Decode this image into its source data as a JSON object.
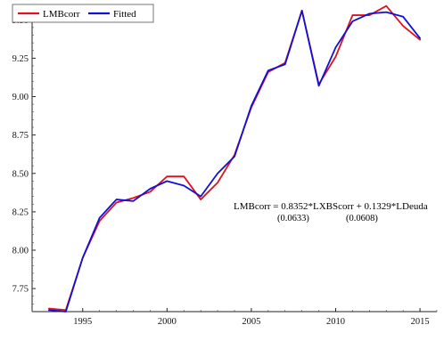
{
  "chart_data": {
    "type": "line",
    "title": "",
    "xlabel": "",
    "ylabel": "",
    "xlim": [
      1992,
      2016
    ],
    "ylim": [
      7.6,
      9.6
    ],
    "x_ticks": [
      1995,
      2000,
      2005,
      2010,
      2015
    ],
    "y_ticks": [
      7.75,
      8.0,
      8.25,
      8.5,
      8.75,
      9.0,
      9.25,
      9.5
    ],
    "x_tick_labels": [
      "1995",
      "2000",
      "2005",
      "2010",
      "2015"
    ],
    "y_tick_labels": [
      "7.75",
      "8.00",
      "8.25",
      "8.50",
      "8.75",
      "9.00",
      "9.25",
      "9.50"
    ],
    "grid": false,
    "legend_position": "top-left",
    "x": [
      1993,
      1994,
      1995,
      1996,
      1997,
      1998,
      1999,
      2000,
      2001,
      2002,
      2003,
      2004,
      2005,
      2006,
      2007,
      2008,
      2009,
      2010,
      2011,
      2012,
      2013,
      2014,
      2015
    ],
    "series": [
      {
        "name": "LMBcorr",
        "color": "#e0121b",
        "values": [
          7.62,
          7.61,
          7.95,
          8.19,
          8.31,
          8.34,
          8.38,
          8.48,
          8.48,
          8.33,
          8.44,
          8.62,
          8.93,
          9.16,
          9.22,
          9.56,
          9.08,
          9.26,
          9.53,
          9.53,
          9.59,
          9.46,
          9.37
        ]
      },
      {
        "name": "Fitted",
        "color": "#1010d6",
        "values": [
          7.61,
          7.6,
          7.95,
          8.21,
          8.33,
          8.32,
          8.4,
          8.45,
          8.42,
          8.35,
          8.5,
          8.61,
          8.94,
          9.17,
          9.21,
          9.56,
          9.07,
          9.32,
          9.49,
          9.54,
          9.55,
          9.52,
          9.38
        ]
      }
    ],
    "annotation": {
      "equation": "LMBcorr = 0.8352*LXBScorr + 0.1329*LDeuda",
      "se1": "(0.0633)",
      "se2": "(0.0608)"
    }
  }
}
